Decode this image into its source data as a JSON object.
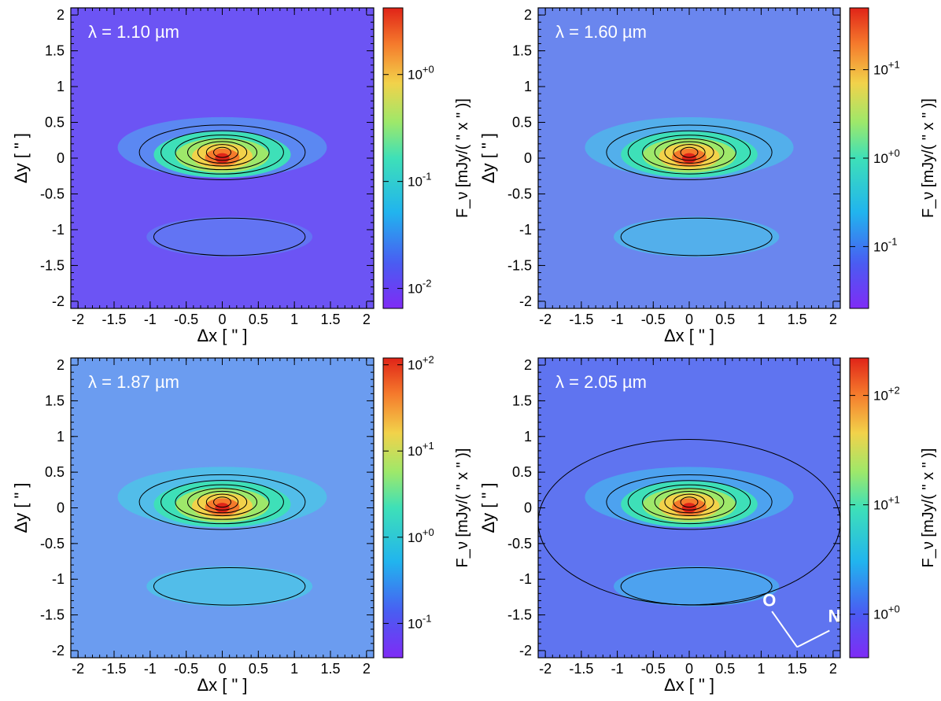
{
  "chart_data": [
    {
      "type": "heatmap",
      "title": "λ = 1.10 µm",
      "xlabel": "Δx [ \" ]",
      "ylabel": "Δy [ \" ]",
      "colorbar_label": "F_ν [mJy/( \" x \" )]",
      "xlim": [
        -2.1,
        2.1
      ],
      "ylim": [
        -2.1,
        2.1
      ],
      "xticks": [
        -2,
        -1.5,
        -1,
        -0.5,
        0,
        0.5,
        1,
        1.5,
        2
      ],
      "yticks": [
        -2,
        -1.5,
        -1,
        -0.5,
        0,
        0.5,
        1,
        1.5,
        2
      ],
      "color_scale": "log",
      "colorbar_range": [
        0.0065,
        4.2
      ],
      "colorbar_ticks": [
        {
          "label": "10^-2",
          "value": 0.01
        },
        {
          "label": "10^-1",
          "value": 0.1
        },
        {
          "label": "10^+0",
          "value": 1
        }
      ],
      "peak_position": [
        0,
        0
      ],
      "contours": "black",
      "colormap": "rainbow"
    },
    {
      "type": "heatmap",
      "title": "λ = 1.60 µm",
      "xlabel": "Δx [ \" ]",
      "ylabel": "Δy [ \" ]",
      "colorbar_label": "F_ν [mJy/( \" x \" )]",
      "xlim": [
        -2.1,
        2.1
      ],
      "ylim": [
        -2.1,
        2.1
      ],
      "xticks": [
        -2,
        -1.5,
        -1,
        -0.5,
        0,
        0.5,
        1,
        1.5,
        2
      ],
      "yticks": [
        -2,
        -1.5,
        -1,
        -0.5,
        0,
        0.5,
        1,
        1.5,
        2
      ],
      "color_scale": "log",
      "colorbar_range": [
        0.02,
        50
      ],
      "colorbar_ticks": [
        {
          "label": "10^-1",
          "value": 0.1
        },
        {
          "label": "10^+0",
          "value": 1
        },
        {
          "label": "10^+1",
          "value": 10
        }
      ],
      "peak_position": [
        0,
        0
      ],
      "contours": "black",
      "colormap": "rainbow"
    },
    {
      "type": "heatmap",
      "title": "λ = 1.87 µm",
      "xlabel": "Δx [ \" ]",
      "ylabel": "Δy [ \" ]",
      "colorbar_label": "F_ν [mJy/( \" x \" )]",
      "xlim": [
        -2.1,
        2.1
      ],
      "ylim": [
        -2.1,
        2.1
      ],
      "xticks": [
        -2,
        -1.5,
        -1,
        -0.5,
        0,
        0.5,
        1,
        1.5,
        2
      ],
      "yticks": [
        -2,
        -1.5,
        -1,
        -0.5,
        0,
        0.5,
        1,
        1.5,
        2
      ],
      "color_scale": "log",
      "colorbar_range": [
        0.04,
        120
      ],
      "colorbar_ticks": [
        {
          "label": "10^-1",
          "value": 0.1
        },
        {
          "label": "10^+0",
          "value": 1
        },
        {
          "label": "10^+1",
          "value": 10
        },
        {
          "label": "10^+2",
          "value": 100
        }
      ],
      "peak_position": [
        0,
        0
      ],
      "contours": "black",
      "colormap": "rainbow"
    },
    {
      "type": "heatmap",
      "title": "λ = 2.05 µm",
      "xlabel": "Δx [ \" ]",
      "ylabel": "Δy [ \" ]",
      "colorbar_label": "F_ν [mJy/( \" x \" )]",
      "xlim": [
        -2.1,
        2.1
      ],
      "ylim": [
        -2.1,
        2.1
      ],
      "xticks": [
        -2,
        -1.5,
        -1,
        -0.5,
        0,
        0.5,
        1,
        1.5,
        2
      ],
      "yticks": [
        -2,
        -1.5,
        -1,
        -0.5,
        0,
        0.5,
        1,
        1.5,
        2
      ],
      "color_scale": "log",
      "colorbar_range": [
        0.4,
        220
      ],
      "colorbar_ticks": [
        {
          "label": "10^+0",
          "value": 1
        },
        {
          "label": "10^+1",
          "value": 10
        },
        {
          "label": "10^+2",
          "value": 100
        }
      ],
      "peak_position": [
        0,
        0
      ],
      "contours": "black",
      "colormap": "rainbow",
      "compass": {
        "labels": [
          "O",
          "N"
        ]
      }
    }
  ]
}
